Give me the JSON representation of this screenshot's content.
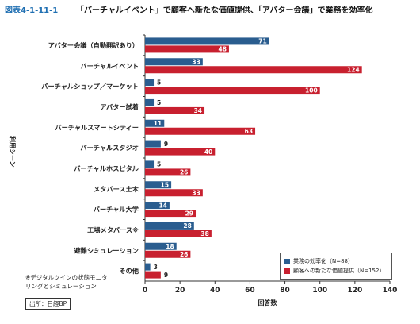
{
  "figure_label": "図表4-1-11-1",
  "figure_title": "「バーチャルイベント」で顧客へ新たな価値提供、「アバター会議」で業務を効率化",
  "footnote": "※デジタルツインの状態モニタ\nリングとシミュレーション",
  "source": "出所：日経BP",
  "colors": {
    "series1": "#2a5d8f",
    "series2": "#c8202f",
    "axis": "#333333"
  },
  "chart_data": {
    "type": "bar",
    "orientation": "horizontal",
    "categories": [
      "アバター会議（自動翻訳あり）",
      "バーチャルイベント",
      "バーチャルショップ／マーケット",
      "アバター試着",
      "バーチャルスマートシティー",
      "バーチャルスタジオ",
      "バーチャルホスピタル",
      "メタバース土木",
      "バーチャル大学",
      "工場メタバース※",
      "避難シミュレーション",
      "その他"
    ],
    "series": [
      {
        "name": "業務の効率化（N=88）",
        "values": [
          71,
          33,
          5,
          5,
          11,
          9,
          5,
          15,
          14,
          28,
          18,
          3
        ]
      },
      {
        "name": "顧客への新たな価値提供（N=152）",
        "values": [
          48,
          124,
          100,
          34,
          63,
          40,
          26,
          33,
          29,
          38,
          26,
          9
        ]
      }
    ],
    "xlabel": "回答数",
    "ylabel": "利用シーン",
    "xlim": [
      0,
      140
    ],
    "xticks": [
      0,
      20,
      40,
      60,
      80,
      100,
      120,
      140
    ],
    "legend_position": "bottom-right",
    "grid": false
  }
}
